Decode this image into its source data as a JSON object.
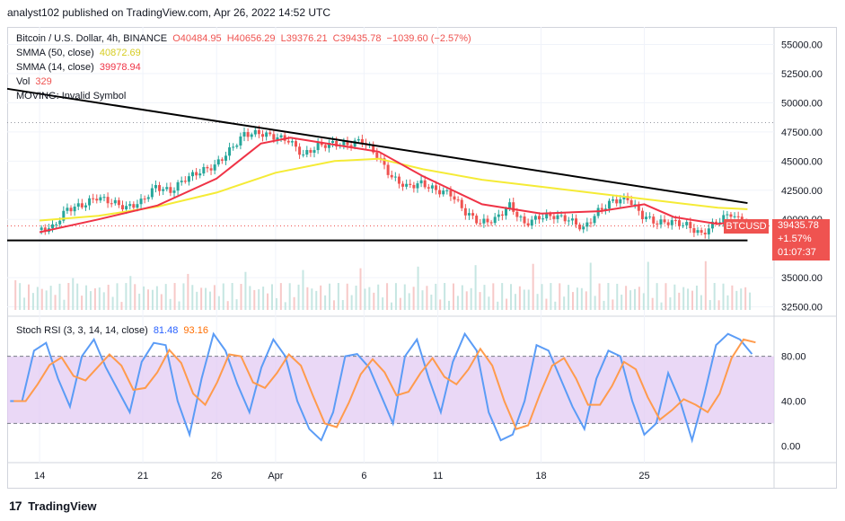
{
  "header": {
    "published": "analyst102 published on TradingView.com, Apr 26, 2022 14:52 UTC"
  },
  "legend": {
    "symbol": "Bitcoin / U.S. Dollar, 4h, BINANCE",
    "open": "O40484.95",
    "high": "H40656.29",
    "low": "L39376.21",
    "close": "C39435.78",
    "change": "−1039.60 (−2.57%)",
    "sma50_label": "SMMA (50, close)",
    "sma50_value": "40872.69",
    "sma14_label": "SMMA (14, close)",
    "sma14_value": "39978.94",
    "vol_label": "Vol",
    "vol_value": "329",
    "moving_label": "MOVING: Invalid Symbol",
    "rsi_label": "Stoch RSI (3, 3, 14, 14, close)",
    "rsi_k": "81.48",
    "rsi_d": "93.16"
  },
  "price_badge": {
    "symbol": "BTCUSD",
    "price": "39435.78",
    "change": "+1.57%",
    "countdown": "01:07:37"
  },
  "footer": {
    "logo": "TradingView"
  },
  "colors": {
    "up": "#26a69a",
    "down": "#ef5350",
    "sma50": "#f5eb36",
    "sma14": "#ef3346",
    "rsi_k": "#5b9cf6",
    "rsi_d": "#ff9b4d",
    "rsi_band": "#e1c8f2",
    "trend": "#000000"
  },
  "chart_data": [
    {
      "type": "candlestick",
      "title": "Bitcoin / U.S. Dollar, 4h, BINANCE",
      "x_ticks": [
        "14",
        "21",
        "26",
        "Apr",
        "6",
        "11",
        "18",
        "25"
      ],
      "y_ticks": [
        "55000.00",
        "52500.00",
        "50000.00",
        "47500.00",
        "45000.00",
        "42500.00",
        "40000.00",
        "35000.00",
        "32500.00"
      ],
      "ylim": [
        31700,
        56500
      ],
      "grid": true,
      "series": [
        {
          "name": "Price",
          "close_path": [
            [
              14,
              39100
            ],
            [
              15,
              39300
            ],
            [
              16,
              40900
            ],
            [
              17,
              41200
            ],
            [
              18,
              41900
            ],
            [
              19,
              41500
            ],
            [
              20,
              41000
            ],
            [
              21,
              41500
            ],
            [
              22,
              42800
            ],
            [
              23,
              42400
            ],
            [
              24,
              43500
            ],
            [
              25,
              44100
            ],
            [
              26,
              44600
            ],
            [
              27,
              45900
            ],
            [
              28,
              47300
            ],
            [
              29,
              47400
            ],
            [
              30,
              47100
            ],
            [
              31,
              46800
            ],
            [
              32,
              45500
            ],
            [
              33,
              46300
            ],
            [
              34,
              46500
            ],
            [
              35,
              46400
            ],
            [
              36,
              46800
            ],
            [
              37,
              45500
            ],
            [
              38,
              43600
            ],
            [
              39,
              42800
            ],
            [
              40,
              43100
            ],
            [
              41,
              42500
            ],
            [
              42,
              42200
            ],
            [
              43,
              40600
            ],
            [
              44,
              39700
            ],
            [
              45,
              40000
            ],
            [
              46,
              41200
            ],
            [
              47,
              39600
            ],
            [
              48,
              40200
            ],
            [
              49,
              40300
            ],
            [
              50,
              40000
            ],
            [
              51,
              39200
            ],
            [
              52,
              40700
            ],
            [
              53,
              41600
            ],
            [
              54,
              41800
            ],
            [
              55,
              40300
            ],
            [
              56,
              39700
            ],
            [
              57,
              39800
            ],
            [
              58,
              39500
            ],
            [
              59,
              38700
            ],
            [
              60,
              39800
            ],
            [
              61,
              40500
            ],
            [
              62,
              39436
            ]
          ]
        },
        {
          "name": "SMMA (50, close)",
          "path": [
            [
              14,
              39900
            ],
            [
              18,
              40300
            ],
            [
              22,
              41100
            ],
            [
              26,
              42300
            ],
            [
              30,
              44000
            ],
            [
              34,
              45000
            ],
            [
              37,
              45200
            ],
            [
              40,
              44300
            ],
            [
              44,
              43400
            ],
            [
              48,
              42800
            ],
            [
              52,
              42200
            ],
            [
              56,
              41600
            ],
            [
              60,
              41000
            ],
            [
              62,
              40873
            ]
          ]
        },
        {
          "name": "SMMA (14, close)",
          "path": [
            [
              14,
              38900
            ],
            [
              18,
              40000
            ],
            [
              22,
              41200
            ],
            [
              26,
              43500
            ],
            [
              29,
              46500
            ],
            [
              31,
              47000
            ],
            [
              34,
              46400
            ],
            [
              37,
              45800
            ],
            [
              40,
              43700
            ],
            [
              44,
              41300
            ],
            [
              48,
              40500
            ],
            [
              52,
              40700
            ],
            [
              55,
              41300
            ],
            [
              57,
              40200
            ],
            [
              60,
              39600
            ],
            [
              62,
              39979
            ]
          ]
        }
      ],
      "trendlines": [
        {
          "from": [
            11.8,
            51200
          ],
          "to": [
            62,
            41400
          ]
        },
        {
          "from": [
            11.8,
            38200
          ],
          "to": [
            62,
            38200
          ]
        }
      ]
    },
    {
      "type": "line",
      "title": "Stoch RSI (3, 3, 14, 14, close)",
      "y_ticks": [
        "80.00",
        "40.00",
        "0.00"
      ],
      "ylim": [
        -15,
        115
      ],
      "bands": [
        20,
        80
      ],
      "series": [
        {
          "name": "K",
          "values": [
            40,
            40,
            85,
            92,
            60,
            35,
            80,
            95,
            70,
            50,
            30,
            75,
            92,
            90,
            40,
            10,
            60,
            100,
            85,
            55,
            30,
            70,
            95,
            80,
            40,
            15,
            5,
            30,
            80,
            82,
            70,
            45,
            20,
            80,
            95,
            60,
            30,
            75,
            100,
            85,
            30,
            5,
            10,
            40,
            90,
            85,
            60,
            35,
            15,
            60,
            85,
            80,
            40,
            10,
            20,
            65,
            40,
            5,
            45,
            90,
            100,
            95,
            82
          ]
        }
      ]
    }
  ]
}
